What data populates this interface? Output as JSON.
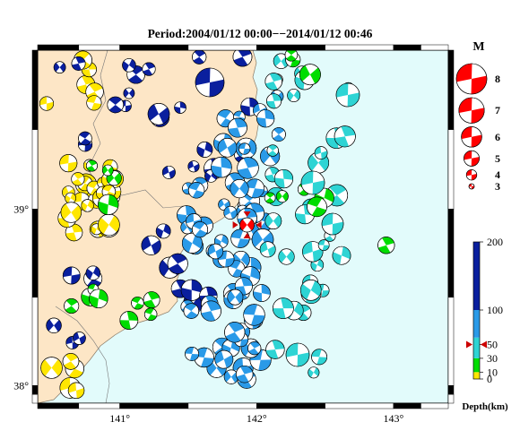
{
  "title": "Period:2004/01/12 00:00−−2014/01/12 00:46",
  "map": {
    "lon_ticks": [
      {
        "value": 141,
        "label": "141°"
      },
      {
        "value": 142,
        "label": "142°"
      },
      {
        "value": 143,
        "label": "143°"
      }
    ],
    "lat_ticks": [
      {
        "value": 39,
        "label": "39°"
      },
      {
        "value": 38,
        "label": "38°"
      }
    ],
    "lon_range": [
      140.4,
      143.4
    ],
    "lat_range": [
      37.9,
      39.9
    ],
    "land_color": "#fde6c6",
    "sea_color": "#e2fbfb",
    "highlight_event": {
      "lon": 141.93,
      "lat": 38.91,
      "color": "#ff0000"
    }
  },
  "magnitude_legend": {
    "title": "M",
    "items": [
      {
        "label": "8",
        "mag": 8
      },
      {
        "label": "7",
        "mag": 7
      },
      {
        "label": "6",
        "mag": 6
      },
      {
        "label": "5",
        "mag": 5
      },
      {
        "label": "4",
        "mag": 4
      },
      {
        "label": "3",
        "mag": 3
      }
    ]
  },
  "depth_scale": {
    "title": "Depth(km)",
    "ticks": [
      "200",
      "100",
      "50",
      "30",
      "10",
      "0"
    ],
    "colors": {
      "0-10": "#ffe600",
      "10-30": "#00dd00",
      "30-60": "#2ed4d4",
      "60-100": "#2a9ae8",
      "100-200": "#0a1f9e"
    },
    "marker_depth": 50
  }
}
